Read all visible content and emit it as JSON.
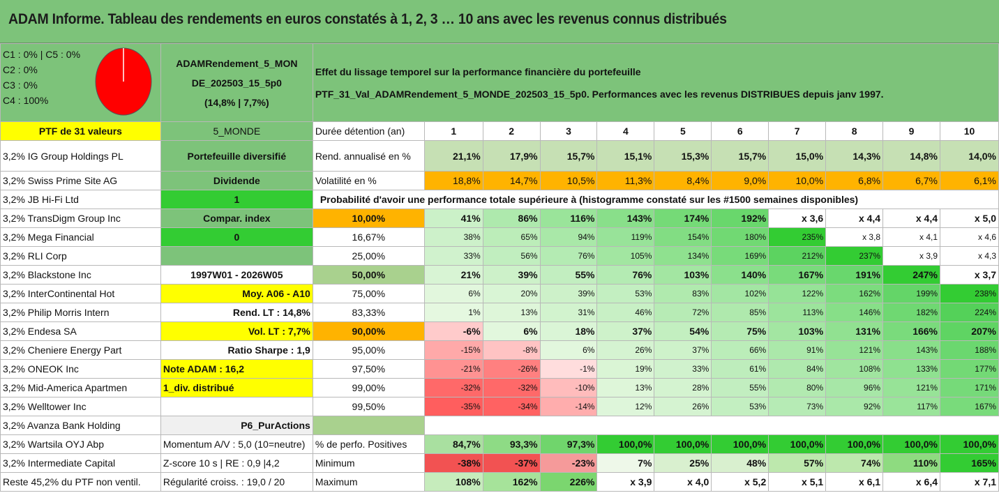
{
  "title": "ADAM Informe. Tableau des rendements en euros constatés à 1, 2, 3 … 10 ans avec les revenus connus distribués",
  "colors": {
    "green_header": "#7dc37a",
    "yellow": "#ffff00",
    "orange": "#ffb300",
    "bright_green": "#33cc33",
    "light_green": "#c6e0b4",
    "red": "#ff0000"
  },
  "allocation": {
    "line1": "C1 : 0% | C5 : 0%",
    "line2": "C2 : 0%",
    "line3": "C3 : 0%",
    "line4": "C4 : 100%"
  },
  "pie": {
    "c4_share": 100
  },
  "portfolio_name": {
    "line1": "ADAMRendement_5_MON",
    "line2": "DE_202503_15_5p0",
    "line3": "(14,8% | 7,7%)"
  },
  "header_text": {
    "line1": "Effet du lissage temporel sur la performance financière du portefeuille",
    "line2": "PTF_31_Val_ADAMRendement_5_MONDE_202503_15_5p0. Performances avec les revenus DISTRIBUES depuis janv 1997."
  },
  "years": [
    "1",
    "2",
    "3",
    "4",
    "5",
    "6",
    "7",
    "8",
    "9",
    "10"
  ],
  "labels": {
    "ptf": "PTF de 31 valeurs",
    "zone": "5_MONDE",
    "duree": "Durée détention (an)",
    "rend": "Rend. annualisé en %",
    "vol": "Volatilité en %",
    "proba": "Probabilité d'avoir une performance totale supérieure à (histogramme constaté sur les #1500 semaines disponibles)",
    "pct_pos": "% de perfo. Positives",
    "min": "Minimum",
    "max": "Maximum"
  },
  "holdings": [
    "3,2% IG Group Holdings PL",
    "3,2% Swiss Prime Site AG",
    "3,2% JB Hi-Fi Ltd",
    "3,2% TransDigm Group Inc",
    "3,2% Mega Financial",
    "3,2% RLI Corp",
    "3,2% Blackstone Inc",
    "3,2% InterContinental Hot",
    "3,2% Philip Morris Intern",
    "3,2% Endesa SA",
    "3,2% Cheniere Energy Part",
    "3,2% ONEOK Inc",
    "3,2% Mid-America Apartmen",
    "3,2% Welltower Inc",
    "3,2% Avanza Bank Holding",
    "3,2% Wartsila OYJ Abp",
    "3,2% Intermediate Capital",
    "Reste 45,2% du PTF non ventil."
  ],
  "info": {
    "diversifie": "Portefeuille diversifié",
    "dividende": "Dividende",
    "one": "1",
    "compar": "Compar. index",
    "zero": "0",
    "period": "1997W01 - 2026W05",
    "moy": "Moy. A06 - A10",
    "rend_lt": "Rend. LT : 14,8%",
    "vol_lt": "Vol. LT : 7,7%",
    "sharpe": "Ratio Sharpe : 1,9",
    "note": "Note ADAM : 16,2",
    "div": "1_div. distribué",
    "p6": "P6_PurActions",
    "momentum": "Momentum A/V : 5,0 (10=neutre)",
    "zscore": "Z-score 10 s | RE : 0,9 |4,2",
    "regularite": "Régularité croiss. : 19,0 / 20"
  },
  "rend": [
    "21,1%",
    "17,9%",
    "15,7%",
    "15,1%",
    "15,3%",
    "15,7%",
    "15,0%",
    "14,3%",
    "14,8%",
    "14,0%"
  ],
  "vol": [
    "18,8%",
    "14,7%",
    "10,5%",
    "11,3%",
    "8,4%",
    "9,0%",
    "10,0%",
    "6,8%",
    "6,7%",
    "6,1%"
  ],
  "proba_rows": [
    {
      "level": "10,00%",
      "values": [
        "41%",
        "86%",
        "116%",
        "143%",
        "174%",
        "192%",
        "x 3,6",
        "x 4,4",
        "x 4,4",
        "x 5,0"
      ]
    },
    {
      "level": "16,67%",
      "values": [
        "38%",
        "65%",
        "94%",
        "119%",
        "154%",
        "180%",
        "235%",
        "x 3,8",
        "x 4,1",
        "x 4,6"
      ]
    },
    {
      "level": "25,00%",
      "values": [
        "33%",
        "56%",
        "76%",
        "105%",
        "134%",
        "169%",
        "212%",
        "237%",
        "x 3,9",
        "x 4,3"
      ]
    },
    {
      "level": "50,00%",
      "values": [
        "21%",
        "39%",
        "55%",
        "76%",
        "103%",
        "140%",
        "167%",
        "191%",
        "247%",
        "x 3,7"
      ]
    },
    {
      "level": "75,00%",
      "values": [
        "6%",
        "20%",
        "39%",
        "53%",
        "83%",
        "102%",
        "122%",
        "162%",
        "199%",
        "238%"
      ]
    },
    {
      "level": "83,33%",
      "values": [
        "1%",
        "13%",
        "31%",
        "46%",
        "72%",
        "85%",
        "113%",
        "146%",
        "182%",
        "224%"
      ]
    },
    {
      "level": "90,00%",
      "values": [
        "-6%",
        "6%",
        "18%",
        "37%",
        "54%",
        "75%",
        "103%",
        "131%",
        "166%",
        "207%"
      ]
    },
    {
      "level": "95,00%",
      "values": [
        "-15%",
        "-8%",
        "6%",
        "26%",
        "37%",
        "66%",
        "91%",
        "121%",
        "143%",
        "188%"
      ]
    },
    {
      "level": "97,50%",
      "values": [
        "-21%",
        "-26%",
        "-1%",
        "19%",
        "33%",
        "61%",
        "84%",
        "108%",
        "133%",
        "177%"
      ]
    },
    {
      "level": "99,00%",
      "values": [
        "-32%",
        "-32%",
        "-10%",
        "13%",
        "28%",
        "55%",
        "80%",
        "96%",
        "121%",
        "171%"
      ]
    },
    {
      "level": "99,50%",
      "values": [
        "-35%",
        "-34%",
        "-14%",
        "12%",
        "26%",
        "53%",
        "73%",
        "92%",
        "117%",
        "167%"
      ]
    }
  ],
  "pct_pos": [
    "84,7%",
    "93,3%",
    "97,3%",
    "100,0%",
    "100,0%",
    "100,0%",
    "100,0%",
    "100,0%",
    "100,0%",
    "100,0%"
  ],
  "minimum": [
    "-38%",
    "-37%",
    "-23%",
    "7%",
    "25%",
    "48%",
    "57%",
    "74%",
    "110%",
    "165%"
  ],
  "maximum": [
    "108%",
    "162%",
    "226%",
    "x 3,9",
    "x 4,0",
    "x 5,2",
    "x 5,1",
    "x 6,1",
    "x 6,4",
    "x 7,1"
  ]
}
